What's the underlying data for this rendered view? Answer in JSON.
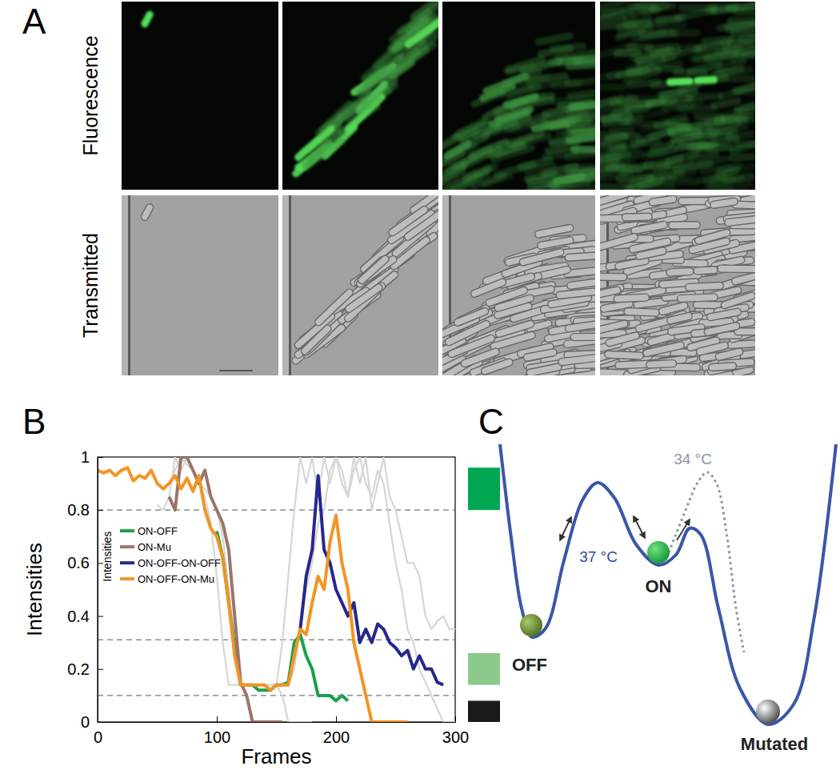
{
  "panel_a": {
    "label": "A",
    "row_labels": [
      "Fluorescence",
      "Transmitted"
    ]
  },
  "chart_data": {
    "type": "line",
    "panel_label": "B",
    "xlabel": "Frames",
    "ylabel": "Intensities",
    "annotations": [
      "Intensities"
    ],
    "xlim": [
      0,
      300
    ],
    "xticks": [
      0,
      100,
      200,
      300
    ],
    "ylim": [
      0,
      1
    ],
    "yticks": [
      0,
      0.2,
      0.4,
      0.6,
      0.8,
      1
    ],
    "legend": "lower left",
    "threshold_lines": [
      0.8,
      0.31,
      0.1
    ],
    "state_bands": [
      {
        "from": 0.8,
        "to": 0.96,
        "color": "#00a651"
      },
      {
        "from": 0.14,
        "to": 0.26,
        "color": "#8cc98c"
      },
      {
        "from": 0,
        "to": 0.08,
        "color": "#1a1a1a"
      }
    ],
    "series": [
      {
        "color": "#d6d6d6",
        "x": [
          50,
          55,
          60,
          65,
          70,
          75,
          80,
          85,
          90,
          95,
          100,
          105,
          110,
          115,
          120,
          125,
          130,
          135,
          140,
          145,
          150,
          155,
          160,
          165,
          170,
          175,
          180,
          185,
          190,
          195,
          200,
          205,
          210,
          215,
          220,
          225,
          230,
          235,
          240,
          245,
          250,
          255,
          260,
          265,
          270,
          275,
          280,
          285,
          290,
          295,
          300
        ],
        "values": [
          0.82,
          0.8,
          0.85,
          1,
          0.95,
          1,
          0.95,
          0.9,
          0.88,
          0.85,
          0.8,
          0.7,
          0.5,
          0.3,
          0.14,
          0.14,
          0.14,
          0.14,
          0.14,
          0.14,
          0.14,
          0.3,
          0.55,
          0.8,
          1,
          0.9,
          1,
          0.85,
          1,
          0.9,
          1,
          0.95,
          0.85,
          1,
          0.9,
          1,
          0.8,
          0.9,
          1,
          0.85,
          0.8,
          0.7,
          0.6,
          0.6,
          0.55,
          0.4,
          0.35,
          0.38,
          0.4,
          0.35,
          0.35
        ]
      },
      {
        "color": "#d6d6d6",
        "x": [
          60,
          65,
          70,
          75,
          80,
          85,
          90,
          95,
          100,
          105,
          110,
          115,
          120,
          125,
          130,
          135,
          140,
          145,
          150,
          155,
          160,
          165,
          170,
          175,
          180
        ],
        "values": [
          0.9,
          0.95,
          1,
          0.97,
          0.95,
          0.9,
          0.85,
          0.75,
          0.55,
          0.3,
          0.14,
          0.14,
          0.14,
          0.14,
          0.14,
          0.14,
          0.14,
          0.14,
          0.14,
          0.1,
          0,
          0,
          0,
          0,
          0
        ]
      },
      {
        "color": "#d6d6d6",
        "x": [
          150,
          155,
          160,
          165,
          170,
          175,
          180,
          185,
          190,
          195,
          200,
          205,
          210,
          215,
          220,
          225,
          230,
          235,
          240,
          245,
          250,
          255,
          260,
          265,
          270,
          275,
          280,
          285,
          290,
          295,
          300
        ],
        "values": [
          0.14,
          0.14,
          0.14,
          0.2,
          0.35,
          0.5,
          0.6,
          0.75,
          0.8,
          0.95,
          1,
          0.9,
          0.85,
          0.95,
          1,
          0.9,
          0.85,
          0.95,
          0.9,
          0.75,
          0.6,
          0.5,
          0.35,
          0.3,
          0.2,
          0.15,
          0.1,
          0.05,
          0,
          0,
          0
        ]
      },
      {
        "name": "ON-OFF",
        "color": "#1aa04a",
        "x": [
          100,
          105,
          110,
          115,
          120,
          125,
          130,
          135,
          140,
          145,
          150,
          155,
          160,
          165,
          170,
          175,
          180,
          185,
          190,
          195,
          200,
          205,
          210
        ],
        "values": [
          0.72,
          0.62,
          0.45,
          0.28,
          0.14,
          0.14,
          0.14,
          0.12,
          0.12,
          0.12,
          0.14,
          0.14,
          0.15,
          0.3,
          0.33,
          0.25,
          0.2,
          0.1,
          0.1,
          0.1,
          0.08,
          0.1,
          0.08
        ]
      },
      {
        "name": "ON-Mu",
        "color": "#9c7469",
        "x": [
          60,
          65,
          70,
          75,
          80,
          85,
          90,
          95,
          100,
          105,
          110,
          115,
          120,
          125,
          130,
          135,
          140,
          145,
          150,
          155
        ],
        "values": [
          0.85,
          0.8,
          1,
          1,
          0.95,
          0.9,
          0.95,
          0.85,
          0.8,
          0.75,
          0.65,
          0.4,
          0.15,
          0.1,
          0,
          0,
          0,
          0,
          0,
          0
        ]
      },
      {
        "name": "ON-OFF-ON-OFF",
        "color": "#25278f",
        "x": [
          170,
          175,
          180,
          185,
          190,
          195,
          200,
          205,
          210,
          215,
          220,
          225,
          230,
          235,
          240,
          245,
          250,
          255,
          260,
          265,
          270,
          275,
          280,
          285,
          290
        ],
        "values": [
          0.35,
          0.55,
          0.65,
          0.93,
          0.65,
          0.6,
          0.5,
          0.45,
          0.4,
          0.45,
          0.3,
          0.35,
          0.3,
          0.37,
          0.35,
          0.3,
          0.28,
          0.25,
          0.27,
          0.2,
          0.25,
          0.2,
          0.2,
          0.15,
          0.14
        ]
      },
      {
        "name": "ON-OFF-ON-Mu",
        "color": "#f39423",
        "x": [
          0,
          5,
          10,
          15,
          20,
          25,
          30,
          35,
          40,
          45,
          50,
          55,
          60,
          65,
          70,
          75,
          80,
          85,
          90,
          95,
          100,
          105,
          110,
          115,
          120,
          125,
          130,
          135,
          140,
          145,
          150,
          155,
          160,
          165,
          170,
          175,
          180,
          185,
          190,
          195,
          200,
          205,
          210,
          215,
          220,
          225,
          230,
          235,
          240,
          245,
          250,
          255,
          260
        ],
        "values": [
          0.95,
          0.94,
          0.95,
          0.93,
          0.95,
          0.96,
          0.91,
          0.93,
          0.92,
          0.95,
          0.9,
          0.88,
          0.9,
          0.93,
          0.88,
          0.92,
          0.87,
          0.93,
          0.8,
          0.73,
          0.7,
          0.62,
          0.45,
          0.25,
          0.14,
          0.14,
          0.14,
          0.14,
          0.14,
          0.12,
          0.14,
          0.14,
          0.14,
          0.25,
          0.35,
          0.33,
          0.45,
          0.55,
          0.5,
          0.68,
          0.78,
          0.6,
          0.5,
          0.3,
          0.2,
          0.1,
          0,
          0,
          0,
          0,
          0,
          0,
          0
        ]
      }
    ]
  },
  "panel_c": {
    "label": "C",
    "states": [
      "OFF",
      "ON",
      "Mutated"
    ],
    "temperatures": [
      "37 °C",
      "34 °C"
    ]
  }
}
